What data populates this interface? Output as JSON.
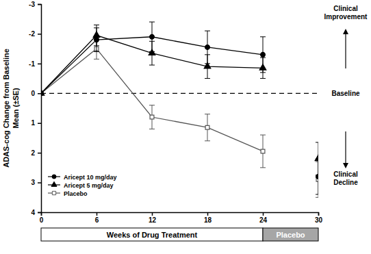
{
  "chart_data": {
    "type": "line",
    "y_label": [
      "ADAS-cog Change from Baseline",
      "Mean (±SE)"
    ],
    "x": [
      0,
      6,
      12,
      18,
      24
    ],
    "washout_x": 30,
    "xlim": [
      0,
      30
    ],
    "xticks": [
      0,
      6,
      12,
      18,
      24,
      30
    ],
    "ylim": [
      -3,
      4
    ],
    "yticks": [
      -3,
      -2,
      -1,
      0,
      1,
      2,
      3,
      4
    ],
    "legend": "lower left",
    "grid": false,
    "baseline": {
      "value": 0,
      "label": "Baseline",
      "line_style": "dashed"
    },
    "annotations": [
      {
        "lines": [
          "Clinical",
          "Improvement"
        ],
        "direction": "up"
      },
      {
        "lines": [
          "Clinical",
          "Decline"
        ],
        "direction": "down"
      }
    ],
    "phases": [
      {
        "label": "Weeks of Drug Treatment",
        "start": 0,
        "end": 24
      },
      {
        "label": "Placebo",
        "start": 24,
        "end": 30
      }
    ],
    "series": [
      {
        "name": "Aricept 10 mg/day",
        "color": "#000000",
        "marker": "circle",
        "line_style": "solid",
        "values": [
          0,
          -1.8,
          -1.9,
          -1.55,
          -1.3
        ],
        "errors": [
          0,
          0.4,
          0.5,
          0.55,
          0.6
        ],
        "washout_value": 2.8,
        "washout_error": 0.6
      },
      {
        "name": "Aricept 5 mg/day",
        "color": "#000000",
        "marker": "triangle",
        "line_style": "solid",
        "values": [
          0,
          -1.95,
          -1.35,
          -0.9,
          -0.85
        ],
        "errors": [
          0,
          0.35,
          0.4,
          0.4,
          0.35
        ],
        "washout_value": 2.2,
        "washout_error": 0.55
      },
      {
        "name": "Placebo",
        "color": "#555555",
        "marker": "open-square",
        "line_style": "solid",
        "values": [
          0,
          -1.5,
          0.8,
          1.15,
          1.95
        ],
        "errors": [
          0,
          0.35,
          0.4,
          0.45,
          0.55
        ],
        "washout_value": 2.9,
        "washout_error": 0.6
      }
    ]
  }
}
